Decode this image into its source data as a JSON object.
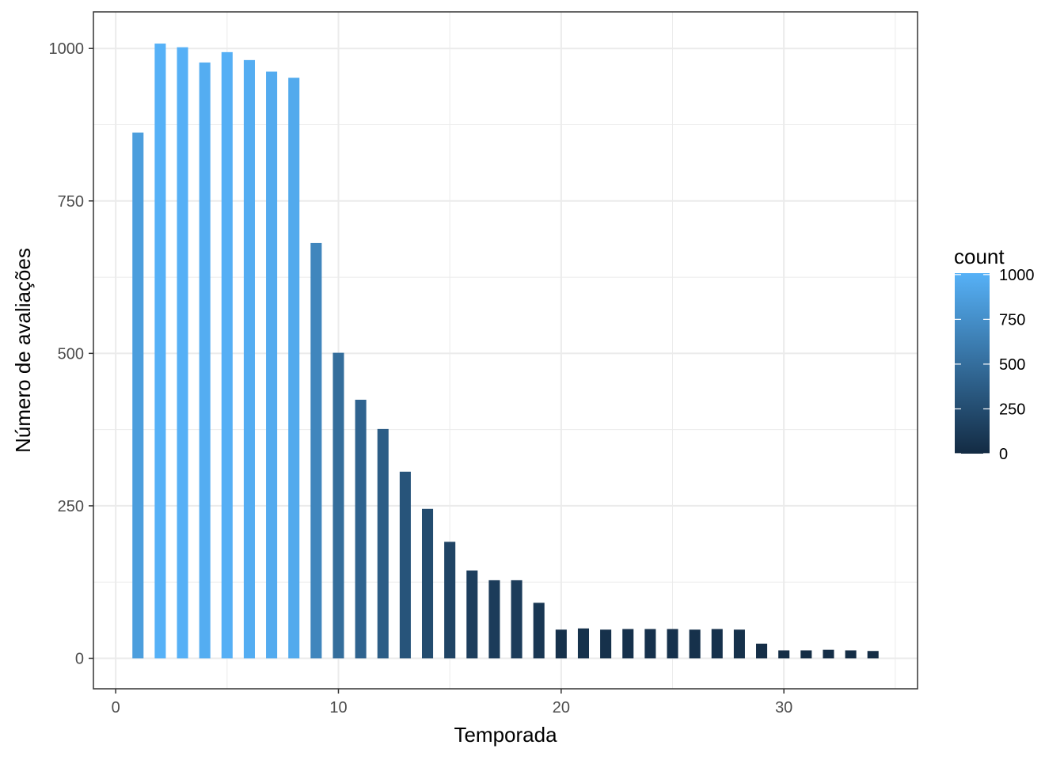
{
  "chart_data": {
    "type": "bar",
    "xlabel": "Temporada",
    "ylabel": "Número de avaliações",
    "xlim": [
      -1,
      36
    ],
    "ylim": [
      -50,
      1060
    ],
    "x_ticks": [
      0,
      10,
      20,
      30
    ],
    "y_ticks": [
      0,
      250,
      500,
      750,
      1000
    ],
    "x_minor": [
      5,
      15,
      25,
      35
    ],
    "y_minor": [
      125,
      375,
      625,
      875
    ],
    "grid": true,
    "legend": {
      "title": "count",
      "placement": "right",
      "labels": [
        0,
        250,
        500,
        750,
        1000
      ],
      "range": [
        0,
        1008
      ],
      "colors": {
        "low": "#132B43",
        "high": "#56B1F7"
      }
    },
    "x": [
      1,
      2,
      3,
      4,
      5,
      6,
      7,
      8,
      9,
      10,
      11,
      12,
      13,
      14,
      15,
      16,
      17,
      18,
      19,
      20,
      21,
      22,
      23,
      24,
      25,
      26,
      27,
      28,
      29,
      30,
      31,
      32,
      33,
      34
    ],
    "values": [
      862,
      1008,
      1002,
      977,
      994,
      981,
      962,
      952,
      681,
      501,
      424,
      376,
      306,
      245,
      191,
      144,
      128,
      128,
      91,
      47,
      49,
      47,
      48,
      48,
      48,
      47,
      48,
      47,
      24,
      13,
      13,
      14,
      13,
      12
    ]
  }
}
